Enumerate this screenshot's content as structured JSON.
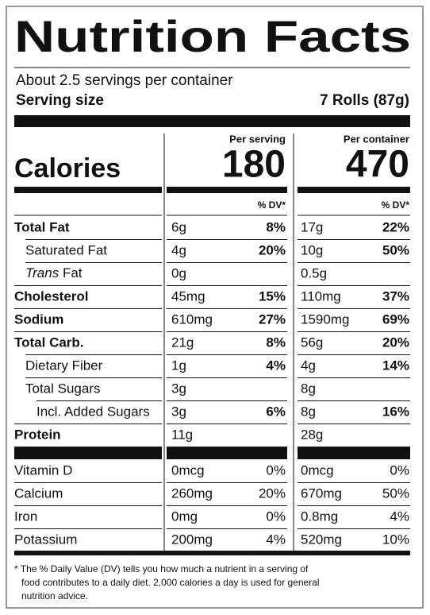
{
  "title": "Nutrition Facts",
  "servings": "About 2.5 servings per container",
  "serving_size": {
    "label": "Serving size",
    "value": "7 Rolls (87g)"
  },
  "calories": {
    "label": "Calories",
    "columns": [
      "Per serving",
      "Per container"
    ],
    "values": [
      "180",
      "470"
    ]
  },
  "dv_header": "% DV*",
  "nutrients": [
    {
      "name": "Total Fat",
      "bold": true,
      "indent": 0,
      "serving": "6g",
      "serving_dv": "8%",
      "container": "17g",
      "container_dv": "22%"
    },
    {
      "name": "Saturated Fat",
      "bold": false,
      "indent": 1,
      "serving": "4g",
      "serving_dv": "20%",
      "container": "10g",
      "container_dv": "50%"
    },
    {
      "name_italic": "Trans",
      "name": "Fat",
      "bold": false,
      "indent": 1,
      "serving": "0g",
      "container": "0.5g"
    },
    {
      "name": "Cholesterol",
      "bold": true,
      "indent": 0,
      "serving": "45mg",
      "serving_dv": "15%",
      "container": "110mg",
      "container_dv": "37%"
    },
    {
      "name": "Sodium",
      "bold": true,
      "indent": 0,
      "serving": "610mg",
      "serving_dv": "27%",
      "container": "1590mg",
      "container_dv": "69%"
    },
    {
      "name": "Total Carb.",
      "bold": true,
      "indent": 0,
      "serving": "21g",
      "serving_dv": "8%",
      "container": "56g",
      "container_dv": "20%"
    },
    {
      "name": "Dietary Fiber",
      "bold": false,
      "indent": 1,
      "serving": "1g",
      "serving_dv": "4%",
      "container": "4g",
      "container_dv": "14%"
    },
    {
      "name": "Total Sugars",
      "bold": false,
      "indent": 1,
      "serving": "3g",
      "container": "8g"
    },
    {
      "name": "Incl. Added Sugars",
      "bold": false,
      "indent": 2,
      "serving": "3g",
      "serving_dv": "6%",
      "container": "8g",
      "container_dv": "16%"
    },
    {
      "name": "Protein",
      "bold": true,
      "indent": 0,
      "serving": "11g",
      "container": "28g"
    }
  ],
  "vitamins": [
    {
      "name": "Vitamin D",
      "serving": "0mcg",
      "serving_dv": "0%",
      "container": "0mcg",
      "container_dv": "0%"
    },
    {
      "name": "Calcium",
      "serving": "260mg",
      "serving_dv": "20%",
      "container": "670mg",
      "container_dv": "50%"
    },
    {
      "name": "Iron",
      "serving": "0mg",
      "serving_dv": "0%",
      "container": "0.8mg",
      "container_dv": "4%"
    },
    {
      "name": "Potassium",
      "serving": "200mg",
      "serving_dv": "4%",
      "container": "520mg",
      "container_dv": "10%"
    }
  ],
  "footnote": [
    "* The % Daily Value (DV) tells you how much a nutrient in a serving of",
    "food contributes to a daily diet. 2,000 calories a day is used for general",
    "nutrition advice."
  ]
}
